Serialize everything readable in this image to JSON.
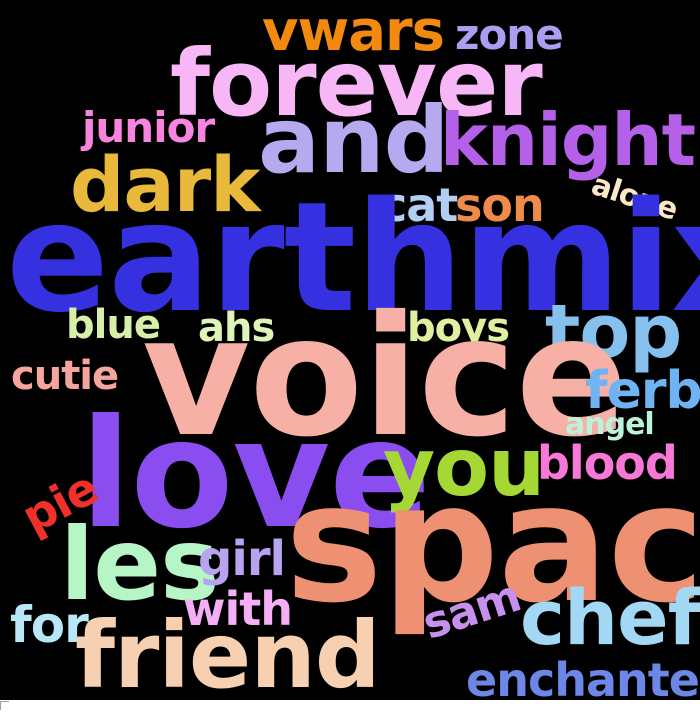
{
  "words": [
    {
      "key": "vwars",
      "text": "vwars",
      "color": "#f28a0f"
    },
    {
      "key": "zone",
      "text": "zone",
      "color": "#a99ef0"
    },
    {
      "key": "forever",
      "text": "forever",
      "color": "#f7b7f7"
    },
    {
      "key": "junior",
      "text": "junior",
      "color": "#f785e0"
    },
    {
      "key": "and",
      "text": "and",
      "color": "#b7a9f0"
    },
    {
      "key": "knight",
      "text": "knight",
      "color": "#b460e8"
    },
    {
      "key": "dark",
      "text": "dark",
      "color": "#e8b93a"
    },
    {
      "key": "catson_cat",
      "text": "cat",
      "color": "#b3cdf3"
    },
    {
      "key": "catson_son",
      "text": "son",
      "color": "#ee8a4a"
    },
    {
      "key": "alone",
      "text": "alone",
      "color": "#fce8c8"
    },
    {
      "key": "earthmix",
      "text": "earthmix",
      "color": "#3530e0"
    },
    {
      "key": "blue",
      "text": "blue",
      "color": "#d6f0a9"
    },
    {
      "key": "ahs",
      "text": "ahs",
      "color": "#dff5b8"
    },
    {
      "key": "boys",
      "text": "boys",
      "color": "#e0f0a0"
    },
    {
      "key": "top",
      "text": "top",
      "color": "#86c1ee"
    },
    {
      "key": "cutie",
      "text": "cutie",
      "color": "#f5a5a0"
    },
    {
      "key": "voice",
      "text": "voice",
      "color": "#f6b0a5"
    },
    {
      "key": "ferb",
      "text": "ferb",
      "color": "#6fb4f2"
    },
    {
      "key": "angel",
      "text": "angel",
      "color": "#bdf2da"
    },
    {
      "key": "love",
      "text": "love",
      "color": "#8a4df0"
    },
    {
      "key": "you",
      "text": "you",
      "color": "#a6d835"
    },
    {
      "key": "blood",
      "text": "blood",
      "color": "#f778d6"
    },
    {
      "key": "pie",
      "text": "pie",
      "color": "#f0302a"
    },
    {
      "key": "les",
      "text": "les",
      "color": "#b6f5c6"
    },
    {
      "key": "girl",
      "text": "girl",
      "color": "#b8a3f0"
    },
    {
      "key": "space",
      "text": "space",
      "color": "#ee9072"
    },
    {
      "key": "with",
      "text": "with",
      "color": "#f5b0f5"
    },
    {
      "key": "for",
      "text": "for",
      "color": "#b8e8f8"
    },
    {
      "key": "sam",
      "text": "sam",
      "color": "#c790ee"
    },
    {
      "key": "chef",
      "text": "chef",
      "color": "#a3d8f5"
    },
    {
      "key": "friend",
      "text": "friend",
      "color": "#f6d0b0"
    },
    {
      "key": "enchante",
      "text": "enchante",
      "color": "#6c87e6"
    }
  ]
}
